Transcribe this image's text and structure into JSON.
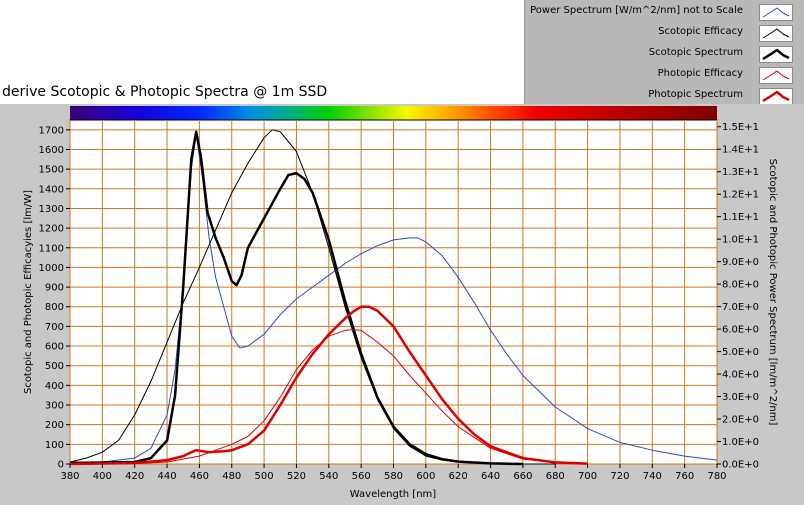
{
  "window": {
    "title": "derive Scotopic & Photopic Spectra @ 1m SSD"
  },
  "legend": [
    {
      "label": "Power Spectrum [W/m^2/nm] not to Scale",
      "color": "#2050c8",
      "width": 1
    },
    {
      "label": "Scotopic Efficacy",
      "color": "#000000",
      "width": 1
    },
    {
      "label": "Scotopic Spectrum",
      "color": "#000000",
      "width": 2.5
    },
    {
      "label": "Photopic Efficacy",
      "color": "#e00000",
      "width": 1
    },
    {
      "label": "Photopic Spectrum",
      "color": "#e00000",
      "width": 2.5
    }
  ],
  "chart_data": {
    "type": "line",
    "xlabel": "Wavelength [nm]",
    "ylabel": "Scotopic and Photopic Efficacyies [lm/W]",
    "y2label": "Scotopic and Photopic Power Spectrum [lm/m^2/nm]",
    "xlim": [
      380,
      780
    ],
    "ylim": [
      0,
      1750
    ],
    "y2lim": [
      0,
      15.3
    ],
    "xticks": [
      380,
      400,
      420,
      440,
      460,
      480,
      500,
      520,
      540,
      560,
      580,
      600,
      620,
      640,
      660,
      680,
      700,
      720,
      740,
      760,
      780
    ],
    "yticks": [
      0,
      100,
      200,
      300,
      400,
      500,
      600,
      700,
      800,
      900,
      1000,
      1100,
      1200,
      1300,
      1400,
      1500,
      1600,
      1700
    ],
    "y2ticks": [
      "0.0E+0",
      "1.0E+0",
      "2.0E+0",
      "3.0E+0",
      "4.0E+0",
      "5.0E+0",
      "6.0E+0",
      "7.0E+0",
      "8.0E+0",
      "9.0E+0",
      "1.0E+1",
      "1.1E+1",
      "1.2E+1",
      "1.3E+1",
      "1.4E+1",
      "1.5E+1"
    ],
    "grid": true,
    "grid_color": "#d07820",
    "plot_bg": "#ffffff",
    "spectrum_bar": true,
    "series": [
      {
        "name": "Power Spectrum [W/m^2/nm] not to Scale",
        "color": "#2050c8",
        "width": 1,
        "x": [
          380,
          400,
          420,
          430,
          440,
          445,
          450,
          455,
          458,
          462,
          466,
          470,
          475,
          480,
          485,
          490,
          500,
          510,
          520,
          530,
          540,
          550,
          560,
          570,
          580,
          590,
          595,
          600,
          610,
          620,
          630,
          640,
          650,
          660,
          680,
          700,
          720,
          740,
          760,
          780
        ],
        "y": [
          10,
          10,
          30,
          80,
          250,
          480,
          900,
          1500,
          1680,
          1450,
          1150,
          950,
          800,
          650,
          590,
          600,
          660,
          760,
          840,
          900,
          960,
          1020,
          1070,
          1110,
          1140,
          1150,
          1150,
          1130,
          1060,
          950,
          820,
          680,
          560,
          450,
          290,
          180,
          110,
          70,
          40,
          20
        ]
      },
      {
        "name": "Scotopic Efficacy",
        "color": "#000000",
        "width": 1,
        "x": [
          380,
          390,
          400,
          410,
          420,
          430,
          440,
          450,
          460,
          470,
          480,
          490,
          500,
          505,
          510,
          520,
          530,
          540,
          550,
          560,
          570,
          580,
          590,
          600,
          610,
          620,
          640,
          660,
          680
        ],
        "y": [
          10,
          30,
          60,
          120,
          250,
          420,
          620,
          820,
          1000,
          1190,
          1380,
          1530,
          1660,
          1700,
          1690,
          1590,
          1380,
          1100,
          800,
          540,
          330,
          180,
          90,
          40,
          20,
          10,
          2,
          0,
          0
        ]
      },
      {
        "name": "Scotopic Spectrum",
        "color": "#000000",
        "width": 2.5,
        "x": [
          380,
          420,
          430,
          440,
          445,
          450,
          455,
          458,
          461,
          465,
          470,
          475,
          480,
          483,
          486,
          490,
          500,
          510,
          515,
          520,
          525,
          530,
          540,
          550,
          560,
          570,
          580,
          590,
          600,
          610,
          620,
          640,
          660
        ],
        "y": [
          5,
          10,
          30,
          120,
          350,
          900,
          1550,
          1690,
          1560,
          1280,
          1150,
          1050,
          930,
          910,
          960,
          1100,
          1250,
          1400,
          1470,
          1480,
          1450,
          1380,
          1140,
          830,
          560,
          340,
          190,
          100,
          50,
          25,
          12,
          3,
          0
        ]
      },
      {
        "name": "Photopic Efficacy",
        "color": "#e00000",
        "width": 1,
        "x": [
          380,
          420,
          440,
          460,
          470,
          480,
          490,
          500,
          510,
          520,
          530,
          540,
          550,
          555,
          560,
          570,
          580,
          590,
          600,
          610,
          620,
          640,
          660,
          680,
          700
        ],
        "y": [
          0,
          2,
          10,
          40,
          70,
          100,
          140,
          220,
          340,
          480,
          580,
          650,
          680,
          683,
          680,
          620,
          550,
          450,
          360,
          270,
          190,
          80,
          25,
          8,
          2
        ]
      },
      {
        "name": "Photopic Spectrum",
        "color": "#e00000",
        "width": 2.5,
        "x": [
          380,
          420,
          440,
          450,
          455,
          458,
          462,
          466,
          470,
          475,
          480,
          490,
          500,
          510,
          520,
          530,
          540,
          550,
          555,
          560,
          565,
          570,
          580,
          590,
          600,
          610,
          620,
          630,
          640,
          660,
          680,
          700
        ],
        "y": [
          0,
          5,
          20,
          40,
          60,
          70,
          65,
          60,
          62,
          65,
          70,
          100,
          170,
          300,
          440,
          560,
          660,
          740,
          775,
          800,
          800,
          780,
          700,
          570,
          450,
          330,
          230,
          150,
          90,
          30,
          8,
          2
        ]
      }
    ]
  }
}
